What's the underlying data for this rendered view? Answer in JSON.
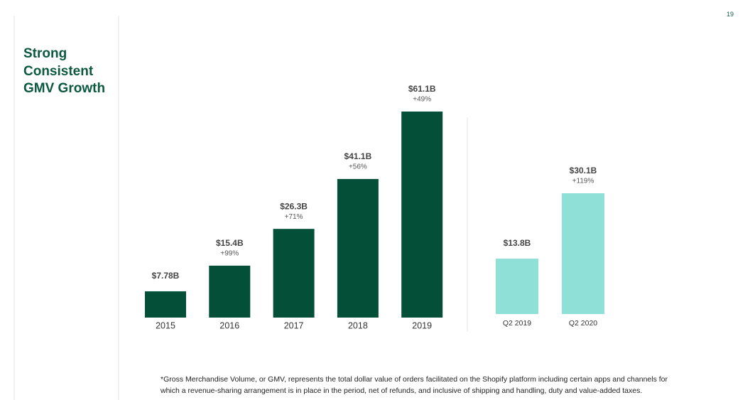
{
  "page_number": "19",
  "title": "Strong Consistent GMV Growth",
  "footnote": "*Gross Merchandise Volume, or GMV, represents the total dollar value of orders facilitated on the Shopify platform including certain apps and channels for which a revenue-sharing arrangement is in place in the period, net of refunds, and inclusive of shipping and handling, duty and value-added taxes.",
  "chart_data": [
    {
      "type": "bar",
      "color": "#034f37",
      "categories": [
        "2015",
        "2016",
        "2017",
        "2018",
        "2019"
      ],
      "values": [
        7.78,
        15.4,
        26.3,
        41.1,
        61.1
      ],
      "value_labels": [
        "$7.78B",
        "$15.4B",
        "$26.3B",
        "$41.1B",
        "$61.1B"
      ],
      "growth_labels": [
        null,
        "+99%",
        "+71%",
        "+56%",
        "+49%"
      ]
    },
    {
      "type": "bar",
      "color": "#8fe0d6",
      "categories": [
        "Q2 2019",
        "Q2 2020"
      ],
      "values": [
        13.8,
        30.1
      ],
      "value_labels": [
        "$13.8B",
        "$30.1B"
      ],
      "growth_labels": [
        null,
        "+119%"
      ]
    }
  ]
}
